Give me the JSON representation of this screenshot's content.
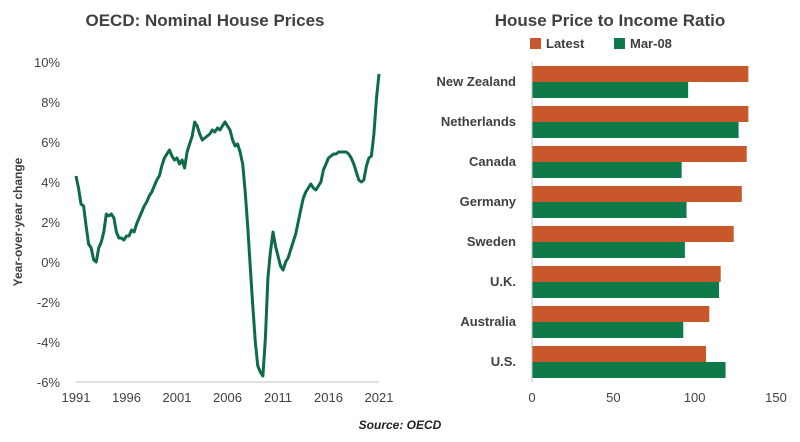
{
  "colors": {
    "line": "#0e6b45",
    "latest": "#c8582b",
    "mar08": "#0e7a4a",
    "text": "#404040",
    "axis": "#bfbfbf"
  },
  "source": "Source: OECD",
  "chart_data": [
    {
      "type": "line",
      "title": "OECD: Nominal House Prices",
      "ylabel": "Year-over-year change",
      "xlabel": "",
      "xlim": [
        1991,
        2021
      ],
      "ylim": [
        -6,
        10
      ],
      "x_ticks": [
        "1991",
        "1996",
        "2001",
        "2006",
        "2011",
        "2016",
        "2021"
      ],
      "y_ticks": [
        "10%",
        "8%",
        "6%",
        "4%",
        "2%",
        "0%",
        "-2%",
        "-4%",
        "-6%"
      ],
      "grid": false,
      "series": [
        {
          "x": [
            1991.0,
            1991.25,
            1991.5,
            1991.75,
            1992.0,
            1992.25,
            1992.5,
            1992.75,
            1993.0,
            1993.25,
            1993.5,
            1993.75,
            1994.0,
            1994.25,
            1994.5,
            1994.75,
            1995.0,
            1995.25,
            1995.5,
            1995.75,
            1996.0,
            1996.25,
            1996.5,
            1996.75,
            1997.0,
            1997.25,
            1997.5,
            1997.75,
            1998.0,
            1998.25,
            1998.5,
            1998.75,
            1999.0,
            1999.25,
            1999.5,
            1999.75,
            2000.0,
            2000.25,
            2000.5,
            2000.75,
            2001.0,
            2001.25,
            2001.5,
            2001.75,
            2002.0,
            2002.25,
            2002.5,
            2002.75,
            2003.0,
            2003.25,
            2003.5,
            2003.75,
            2004.0,
            2004.25,
            2004.5,
            2004.75,
            2005.0,
            2005.25,
            2005.5,
            2005.75,
            2006.0,
            2006.25,
            2006.5,
            2006.75,
            2007.0,
            2007.25,
            2007.5,
            2007.75,
            2008.0,
            2008.25,
            2008.5,
            2008.75,
            2009.0,
            2009.25,
            2009.5,
            2009.75,
            2010.0,
            2010.25,
            2010.5,
            2010.75,
            2011.0,
            2011.25,
            2011.5,
            2011.75,
            2012.0,
            2012.25,
            2012.5,
            2012.75,
            2013.0,
            2013.25,
            2013.5,
            2013.75,
            2014.0,
            2014.25,
            2014.5,
            2014.75,
            2015.0,
            2015.25,
            2015.5,
            2015.75,
            2016.0,
            2016.25,
            2016.5,
            2016.75,
            2017.0,
            2017.25,
            2017.5,
            2017.75,
            2018.0,
            2018.25,
            2018.5,
            2018.75,
            2019.0,
            2019.25,
            2019.5,
            2019.75,
            2020.0,
            2020.25,
            2020.5,
            2020.75,
            2021.0
          ],
          "values": [
            4.3,
            3.7,
            2.9,
            2.8,
            1.8,
            0.9,
            0.7,
            0.1,
            0.0,
            0.7,
            1.0,
            1.5,
            2.4,
            2.3,
            2.4,
            2.2,
            1.5,
            1.2,
            1.2,
            1.1,
            1.3,
            1.3,
            1.6,
            1.5,
            1.9,
            2.2,
            2.5,
            2.8,
            3.0,
            3.3,
            3.5,
            3.8,
            4.1,
            4.3,
            4.8,
            5.2,
            5.4,
            5.6,
            5.3,
            5.1,
            5.2,
            4.9,
            5.1,
            4.7,
            5.5,
            5.9,
            6.3,
            7.0,
            6.8,
            6.4,
            6.1,
            6.2,
            6.3,
            6.4,
            6.6,
            6.5,
            6.7,
            6.6,
            6.8,
            7.0,
            6.8,
            6.6,
            6.1,
            5.8,
            5.9,
            5.5,
            4.9,
            3.5,
            1.8,
            -0.2,
            -2.2,
            -4.0,
            -5.2,
            -5.5,
            -5.7,
            -3.8,
            -0.8,
            0.5,
            1.5,
            0.8,
            0.3,
            -0.2,
            -0.4,
            0.0,
            0.2,
            0.6,
            1.0,
            1.4,
            2.0,
            2.6,
            3.2,
            3.5,
            3.7,
            3.9,
            3.7,
            3.6,
            3.8,
            4.0,
            4.6,
            4.9,
            5.2,
            5.3,
            5.4,
            5.4,
            5.5,
            5.5,
            5.5,
            5.5,
            5.4,
            5.2,
            4.9,
            4.5,
            4.1,
            4.0,
            4.1,
            4.8,
            5.2,
            5.3,
            6.4,
            8.2,
            9.4
          ]
        }
      ]
    },
    {
      "type": "bar",
      "orientation": "horizontal",
      "title": "House Price to Income Ratio",
      "categories": [
        "New Zealand",
        "Netherlands",
        "Canada",
        "Germany",
        "Sweden",
        "U.K.",
        "Australia",
        "U.S."
      ],
      "xlim": [
        0,
        150
      ],
      "x_ticks": [
        "0",
        "50",
        "100",
        "150"
      ],
      "legend_position": "top",
      "grid": false,
      "series": [
        {
          "name": "Latest",
          "values": [
            133,
            133,
            132,
            129,
            124,
            116,
            109,
            107
          ]
        },
        {
          "name": "Mar-08",
          "values": [
            96,
            127,
            92,
            95,
            94,
            115,
            93,
            119
          ]
        }
      ]
    }
  ]
}
